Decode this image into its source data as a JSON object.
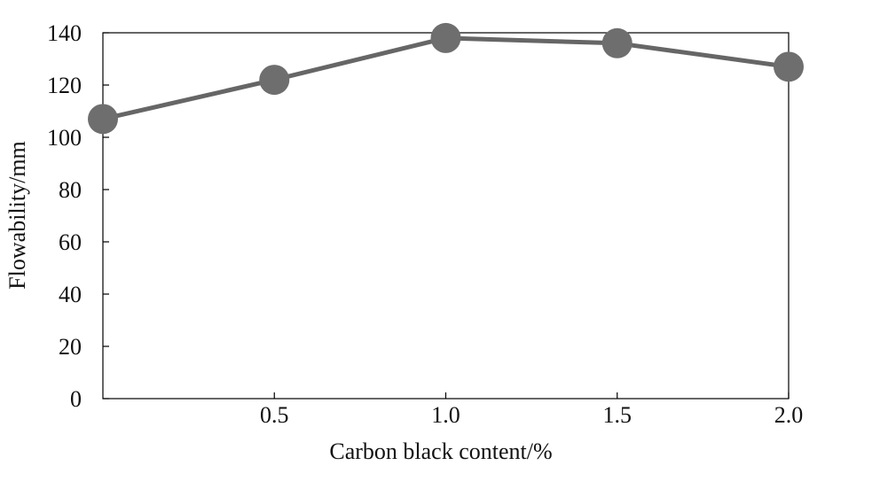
{
  "chart_data": {
    "type": "line",
    "xlabel": "Carbon black content/%",
    "ylabel": "Flowability/mm",
    "x": [
      0,
      0.5,
      1.0,
      1.5,
      2.0
    ],
    "x_tick_labels": [
      "0.5",
      "1.0",
      "1.5",
      "2.0"
    ],
    "x_tick_values": [
      0.5,
      1.0,
      1.5,
      2.0
    ],
    "y_ticks": [
      0,
      20,
      40,
      60,
      80,
      100,
      120,
      140
    ],
    "xlim": [
      0,
      2.0
    ],
    "ylim": [
      0,
      140
    ],
    "series": [
      {
        "values": [
          107,
          122,
          138,
          136,
          127
        ]
      }
    ],
    "colors": {
      "line": "#666666",
      "marker": "#6e6e6e",
      "axis": "#000000"
    },
    "grid": false
  }
}
